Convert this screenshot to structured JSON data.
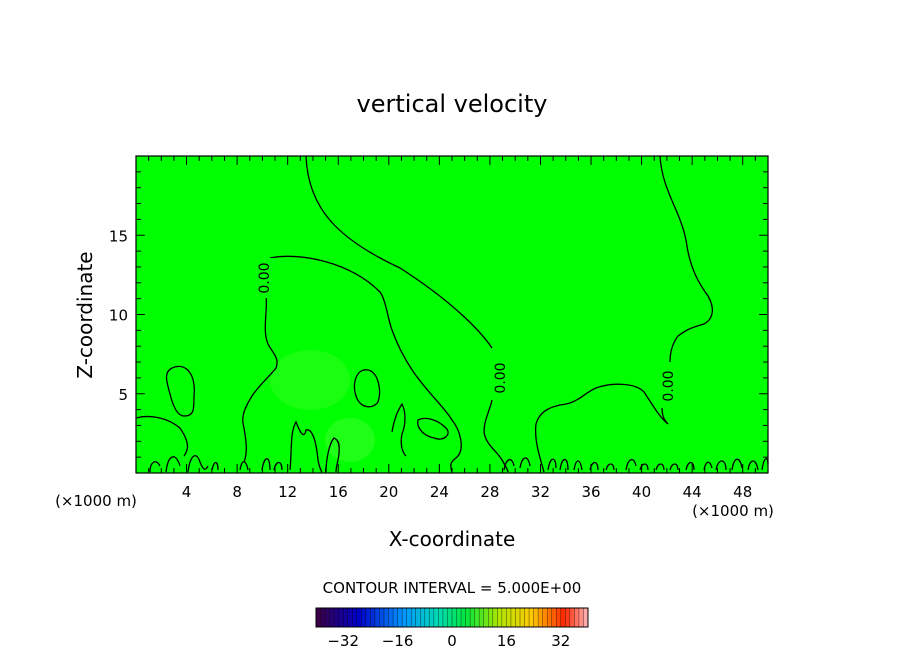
{
  "chart_data": {
    "type": "heatmap",
    "title": "vertical velocity",
    "xlabel": "X-coordinate",
    "ylabel": "Z-coordinate",
    "x_units": "(×1000 m)",
    "y_units": "(×1000 m)",
    "xlim": [
      0,
      50
    ],
    "ylim": [
      0,
      20
    ],
    "x_ticks": [
      4,
      8,
      12,
      16,
      20,
      24,
      28,
      32,
      36,
      40,
      44,
      48
    ],
    "y_ticks": [
      5,
      10,
      15
    ],
    "background_value": 0,
    "contour_label": "0.00",
    "contour_interval_text": "CONTOUR INTERVAL = 5.000E+00",
    "colorbar": {
      "range": [
        -40,
        40
      ],
      "ticks": [
        -32,
        -16,
        0,
        16,
        32
      ],
      "colormap": "rainbow"
    },
    "colors": {
      "field": "#00ff00",
      "contour": "#000000"
    }
  }
}
